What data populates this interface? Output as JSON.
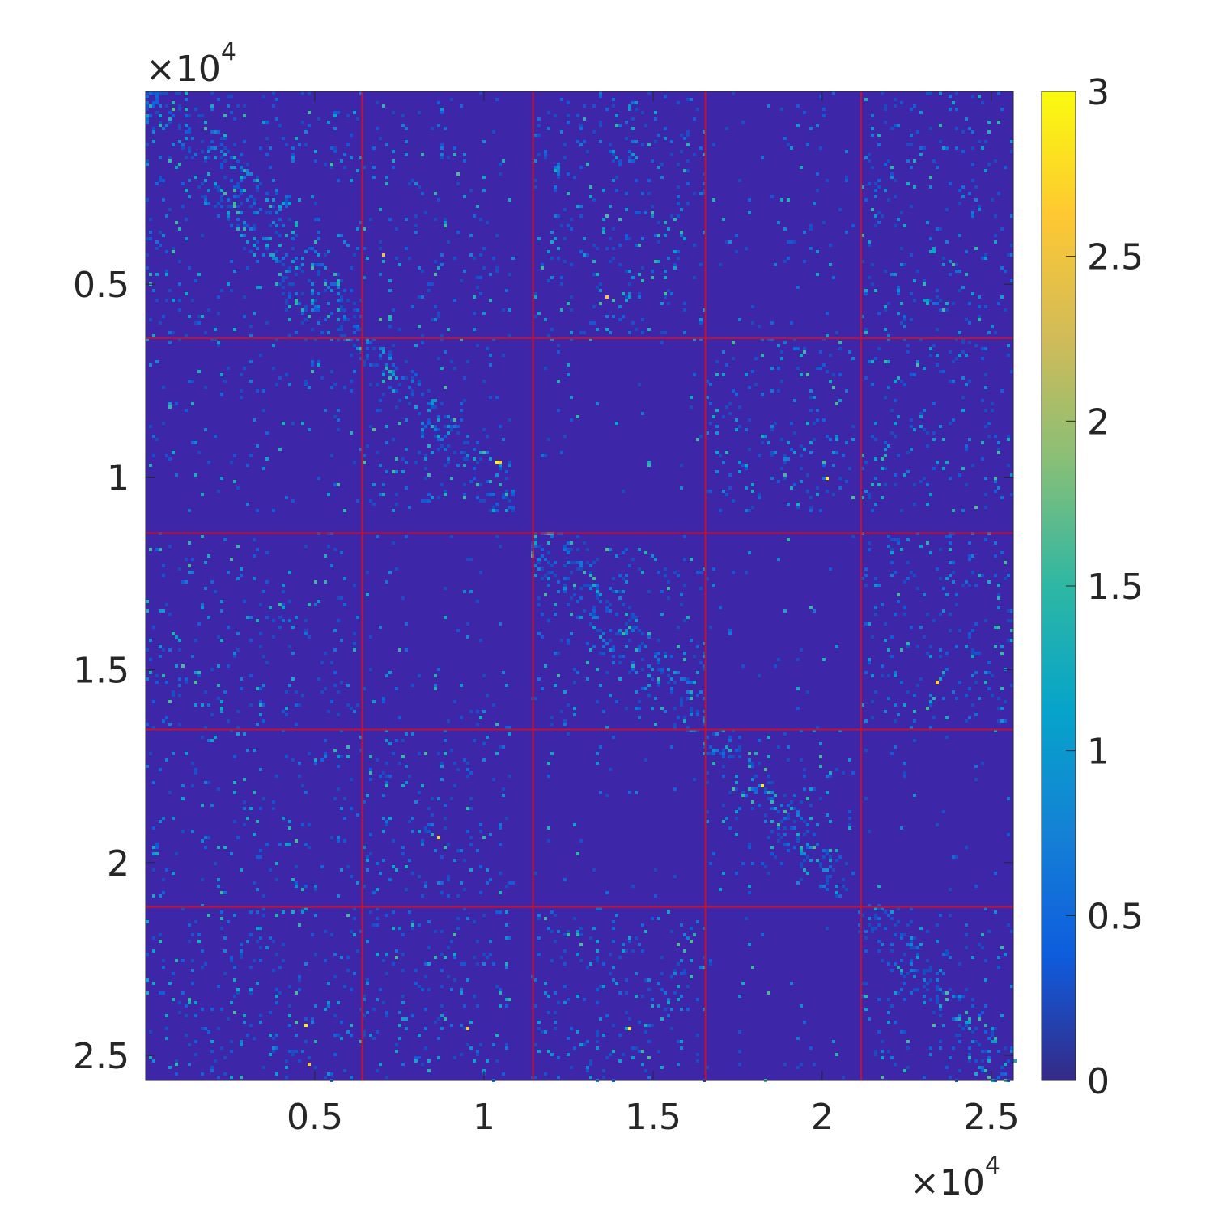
{
  "chart_data": {
    "type": "heatmap",
    "title": "",
    "xlabel": "",
    "ylabel": "",
    "xlim": [
      0,
      25650
    ],
    "ylim": [
      0,
      25650
    ],
    "y_reversed": true,
    "x_ticks": [
      5000,
      10000,
      15000,
      20000,
      25000
    ],
    "x_tick_labels": [
      "0.5",
      "1",
      "1.5",
      "2",
      "2.5"
    ],
    "y_ticks": [
      5000,
      10000,
      15000,
      20000,
      25000
    ],
    "y_tick_labels": [
      "0.5",
      "1",
      "1.5",
      "2",
      "2.5"
    ],
    "x_exponent_label": "×10",
    "x_exponent_power": "4",
    "y_exponent_label": "×10",
    "y_exponent_power": "4",
    "block_boundaries": [
      6400,
      11450,
      16550,
      21150
    ],
    "blocks": [
      {
        "start": 0,
        "end": 6400,
        "fill_end": 6400
      },
      {
        "start": 6400,
        "end": 11450,
        "fill_end": 10900
      },
      {
        "start": 11450,
        "end": 16550,
        "fill_end": 16550
      },
      {
        "start": 16550,
        "end": 21150,
        "fill_end": 20900
      },
      {
        "start": 21150,
        "end": 25650,
        "fill_end": 25650
      }
    ],
    "block_density": [
      [
        0.55,
        0.2,
        0.35,
        0.1,
        0.3
      ],
      [
        0.15,
        0.5,
        0.05,
        0.35,
        0.3
      ],
      [
        0.25,
        0.1,
        0.55,
        0.05,
        0.35
      ],
      [
        0.2,
        0.3,
        0.05,
        0.5,
        0.05
      ],
      [
        0.3,
        0.3,
        0.35,
        0.05,
        0.5
      ]
    ],
    "boundary_color": "#c8102e",
    "colorbar": {
      "min": 0,
      "max": 3,
      "ticks": [
        0,
        0.5,
        1,
        1.5,
        2,
        2.5,
        3
      ],
      "tick_labels": [
        "0",
        "0.5",
        "1",
        "1.5",
        "2",
        "2.5",
        "3"
      ],
      "colormap": "parula",
      "colormap_stops": [
        "#352a87",
        "#0f5cdd",
        "#1481d6",
        "#06a4ca",
        "#2eb7a4",
        "#87bf77",
        "#d1bb59",
        "#fec832",
        "#f9fb0e"
      ]
    },
    "background_color": "#3e26a8"
  }
}
